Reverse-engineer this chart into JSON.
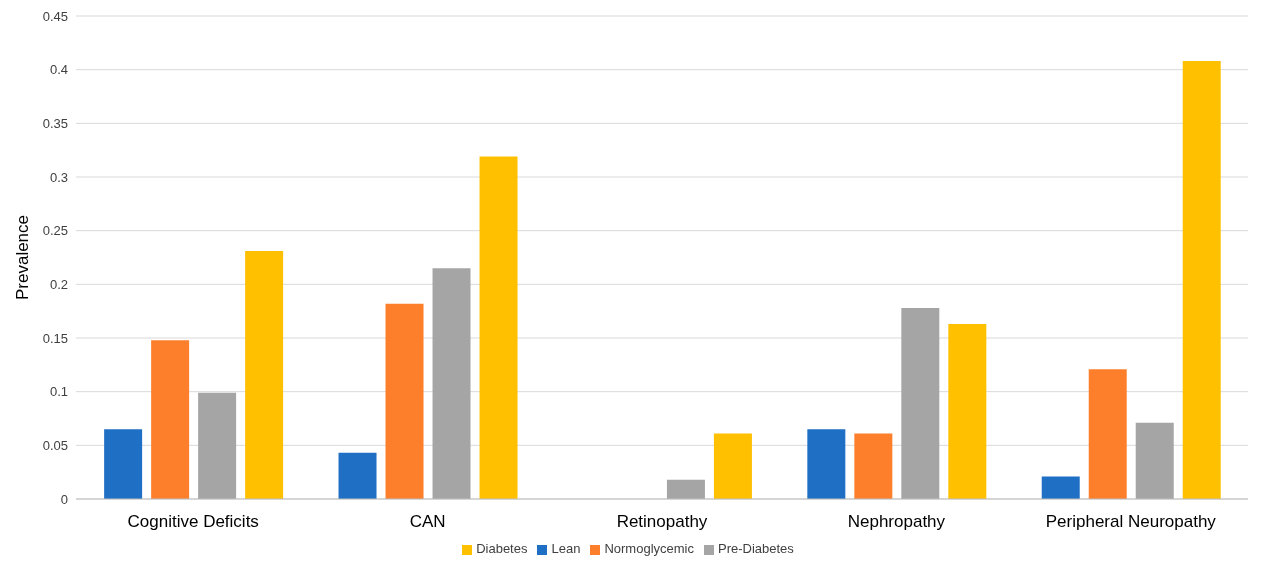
{
  "chart_data": {
    "type": "bar",
    "ylabel": "Prevalence",
    "categories": [
      "Cognitive Deficits",
      "CAN",
      "Retinopathy",
      "Nephropathy",
      "Peripheral Neuropathy"
    ],
    "series": [
      {
        "name": "Lean",
        "color": "#1f6fc5",
        "values": [
          0.065,
          0.043,
          0,
          0.065,
          0.021
        ]
      },
      {
        "name": "Normoglycemic",
        "color": "#fd7f2c",
        "values": [
          0.148,
          0.182,
          0,
          0.061,
          0.121
        ]
      },
      {
        "name": "Pre-Diabetes",
        "color": "#a5a5a5",
        "values": [
          0.099,
          0.215,
          0.018,
          0.178,
          0.071
        ]
      },
      {
        "name": "Diabetes",
        "color": "#ffc000",
        "values": [
          0.231,
          0.319,
          0.061,
          0.163,
          0.408
        ]
      }
    ],
    "ylim": [
      0,
      0.45
    ],
    "yticks": [
      0,
      0.05,
      0.1,
      0.15,
      0.2,
      0.25,
      0.3,
      0.35,
      0.4,
      0.45
    ],
    "grid": "y",
    "legend": "bottom"
  }
}
